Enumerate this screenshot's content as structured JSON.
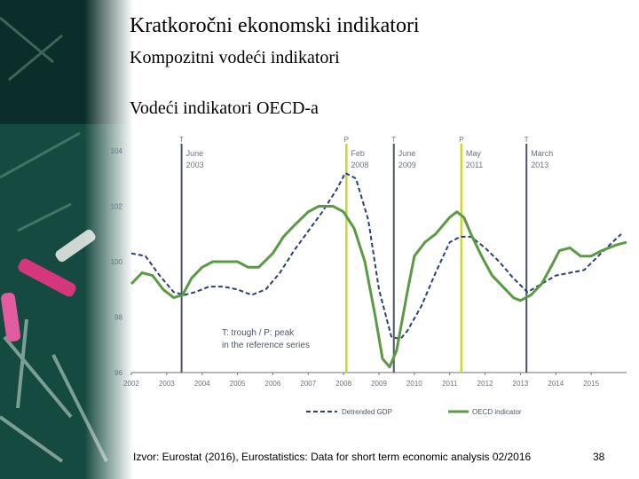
{
  "slide": {
    "title": "Kratkoročni ekonomski indikatori",
    "subtitle": "Kompozitni vodeći indikatori",
    "heading": "Vodeći indikatori OECD-a",
    "source": "Izvor: Eurostat (2016), Eurostatistics: Data for short term economic analysis 02/2016",
    "page_number": "38"
  },
  "colors": {
    "gdp": "#2b3f73",
    "oecd": "#5a9a45",
    "trough": "#4b5568",
    "peak": "#c8d82e",
    "axis": "#6b7280"
  },
  "chart_data": {
    "type": "line",
    "xlim": [
      2002,
      2016
    ],
    "ylim": [
      96,
      104
    ],
    "yticks": [
      "104",
      "102",
      "100",
      "98",
      "96"
    ],
    "xticks": [
      "2002",
      "2003",
      "2004",
      "2005",
      "2006",
      "2007",
      "2008",
      "2009",
      "2010",
      "2011",
      "2012",
      "2013",
      "2014",
      "2015"
    ],
    "annotation": [
      "T: trough / P: peak",
      "in the reference series"
    ],
    "markers": [
      {
        "type": "T",
        "label1": "June",
        "label2": "2003",
        "x": 2003.42
      },
      {
        "type": "P",
        "label1": "Feb",
        "label2": "2008",
        "x": 2008.08
      },
      {
        "type": "T",
        "label1": "June",
        "label2": "2009",
        "x": 2009.42
      },
      {
        "type": "P",
        "label1": "May",
        "label2": "2011",
        "x": 2011.33
      },
      {
        "type": "T",
        "label1": "March",
        "label2": "2013",
        "x": 2013.17
      }
    ],
    "series": [
      {
        "name": "Detrended GDP",
        "style": "dashed",
        "x": [
          2002,
          2002.4,
          2002.8,
          2003.2,
          2003.5,
          2003.8,
          2004.2,
          2004.6,
          2005.0,
          2005.4,
          2005.8,
          2006.2,
          2006.6,
          2007.0,
          2007.4,
          2007.8,
          2008.05,
          2008.35,
          2008.7,
          2009.0,
          2009.35,
          2009.6,
          2009.8,
          2010.2,
          2010.6,
          2011.0,
          2011.3,
          2011.6,
          2012.0,
          2012.4,
          2012.8,
          2013.2,
          2013.6,
          2014.0,
          2014.4,
          2014.8,
          2015.2,
          2015.6,
          2015.85
        ],
        "values": [
          100.3,
          100.2,
          99.5,
          98.9,
          98.8,
          98.9,
          99.1,
          99.1,
          99.0,
          98.8,
          99.0,
          99.6,
          100.4,
          101.1,
          101.8,
          102.6,
          103.2,
          103.0,
          101.5,
          99.0,
          97.3,
          97.2,
          97.5,
          98.4,
          99.6,
          100.7,
          100.9,
          100.9,
          100.5,
          100.0,
          99.4,
          98.9,
          99.2,
          99.5,
          99.6,
          99.7,
          100.2,
          100.7,
          101.0
        ]
      },
      {
        "name": "OECD indicator",
        "style": "solid",
        "x": [
          2002,
          2002.3,
          2002.6,
          2002.9,
          2003.2,
          2003.45,
          2003.7,
          2004.0,
          2004.3,
          2004.6,
          2005.0,
          2005.3,
          2005.6,
          2006.0,
          2006.3,
          2006.6,
          2007.0,
          2007.3,
          2007.7,
          2008.0,
          2008.3,
          2008.6,
          2008.9,
          2009.1,
          2009.3,
          2009.5,
          2009.8,
          2010.0,
          2010.3,
          2010.6,
          2011.0,
          2011.2,
          2011.4,
          2011.6,
          2011.9,
          2012.2,
          2012.5,
          2012.8,
          2013.0,
          2013.3,
          2013.6,
          2013.9,
          2014.1,
          2014.4,
          2014.7,
          2015.0,
          2015.3,
          2015.7,
          2016.0
        ],
        "values": [
          99.2,
          99.6,
          99.5,
          99.0,
          98.7,
          98.8,
          99.4,
          99.8,
          100.0,
          100.0,
          100.0,
          99.8,
          99.8,
          100.3,
          100.9,
          101.3,
          101.8,
          102.0,
          102.0,
          101.8,
          101.2,
          100.0,
          98.0,
          96.5,
          96.2,
          96.8,
          98.9,
          100.2,
          100.7,
          101.0,
          101.6,
          101.8,
          101.6,
          101.0,
          100.2,
          99.5,
          99.1,
          98.7,
          98.6,
          98.8,
          99.2,
          99.9,
          100.4,
          100.5,
          100.2,
          100.2,
          100.4,
          100.6,
          100.7
        ]
      }
    ],
    "legend": [
      "Detrended GDP",
      "OECD indicator"
    ],
    "legend_position": "bottom"
  }
}
